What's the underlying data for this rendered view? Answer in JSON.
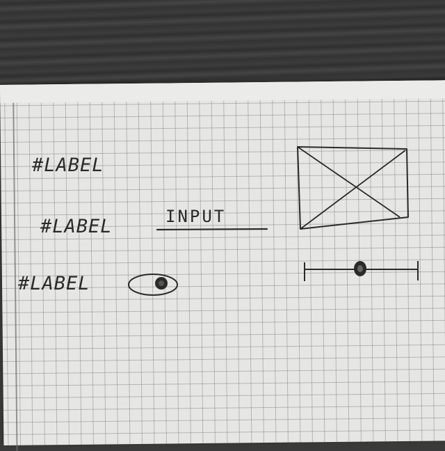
{
  "sketch": {
    "rows": [
      {
        "label": "#LABEL"
      },
      {
        "label": "#LABEL",
        "input_text": "INPUT"
      },
      {
        "label": "#LABEL"
      }
    ]
  },
  "icons": {
    "image_placeholder": "image-placeholder-icon",
    "toggle": "toggle-icon",
    "slider": "slider-icon"
  },
  "colors": {
    "ink": "#2a2a2a",
    "paper": "#e6e6e4",
    "grid": "#9a9a9a",
    "desk": "#3a3a3a"
  }
}
